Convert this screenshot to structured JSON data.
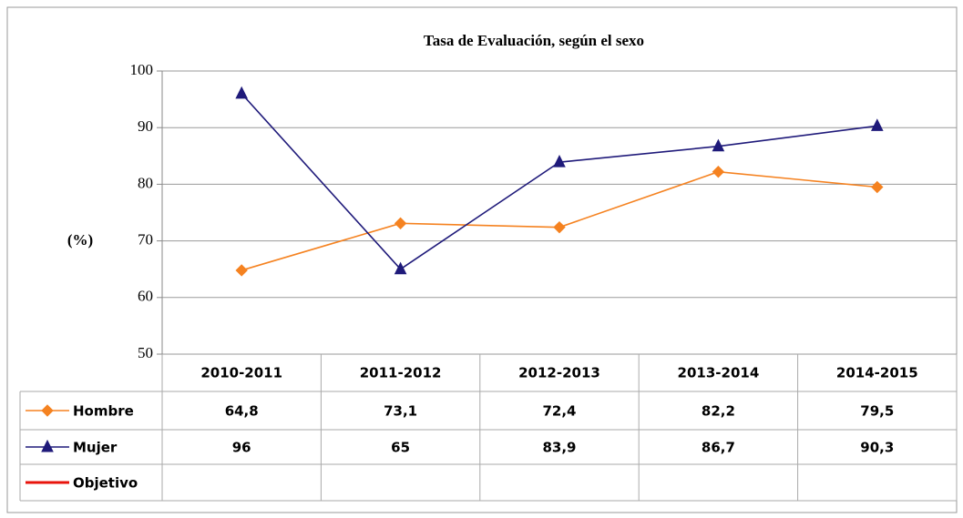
{
  "chart_data": {
    "type": "line",
    "title": "Tasa de Evaluación, según el sexo",
    "ylabel": "(%)",
    "categories": [
      "2010-2011",
      "2011-2012",
      "2012-2013",
      "2013-2014",
      "2014-2015"
    ],
    "series": [
      {
        "name": "Hombre",
        "color": "#f58220",
        "marker": "diamond",
        "values": [
          64.8,
          73.1,
          72.4,
          82.2,
          79.5
        ],
        "value_labels": [
          "64,8",
          "73,1",
          "72,4",
          "82,2",
          "79,5"
        ]
      },
      {
        "name": "Mujer",
        "color": "#1f1a7a",
        "marker": "triangle",
        "values": [
          96,
          65,
          83.9,
          86.7,
          90.3
        ],
        "value_labels": [
          "96",
          "65",
          "83,9",
          "86,7",
          "90,3"
        ]
      },
      {
        "name": "Objetivo",
        "color": "#e8140c",
        "marker": null,
        "values": [
          null,
          null,
          null,
          null,
          null
        ]
      }
    ],
    "ylim": [
      50,
      100
    ],
    "yticks": [
      50,
      60,
      70,
      80,
      90,
      100
    ],
    "grid": true
  }
}
